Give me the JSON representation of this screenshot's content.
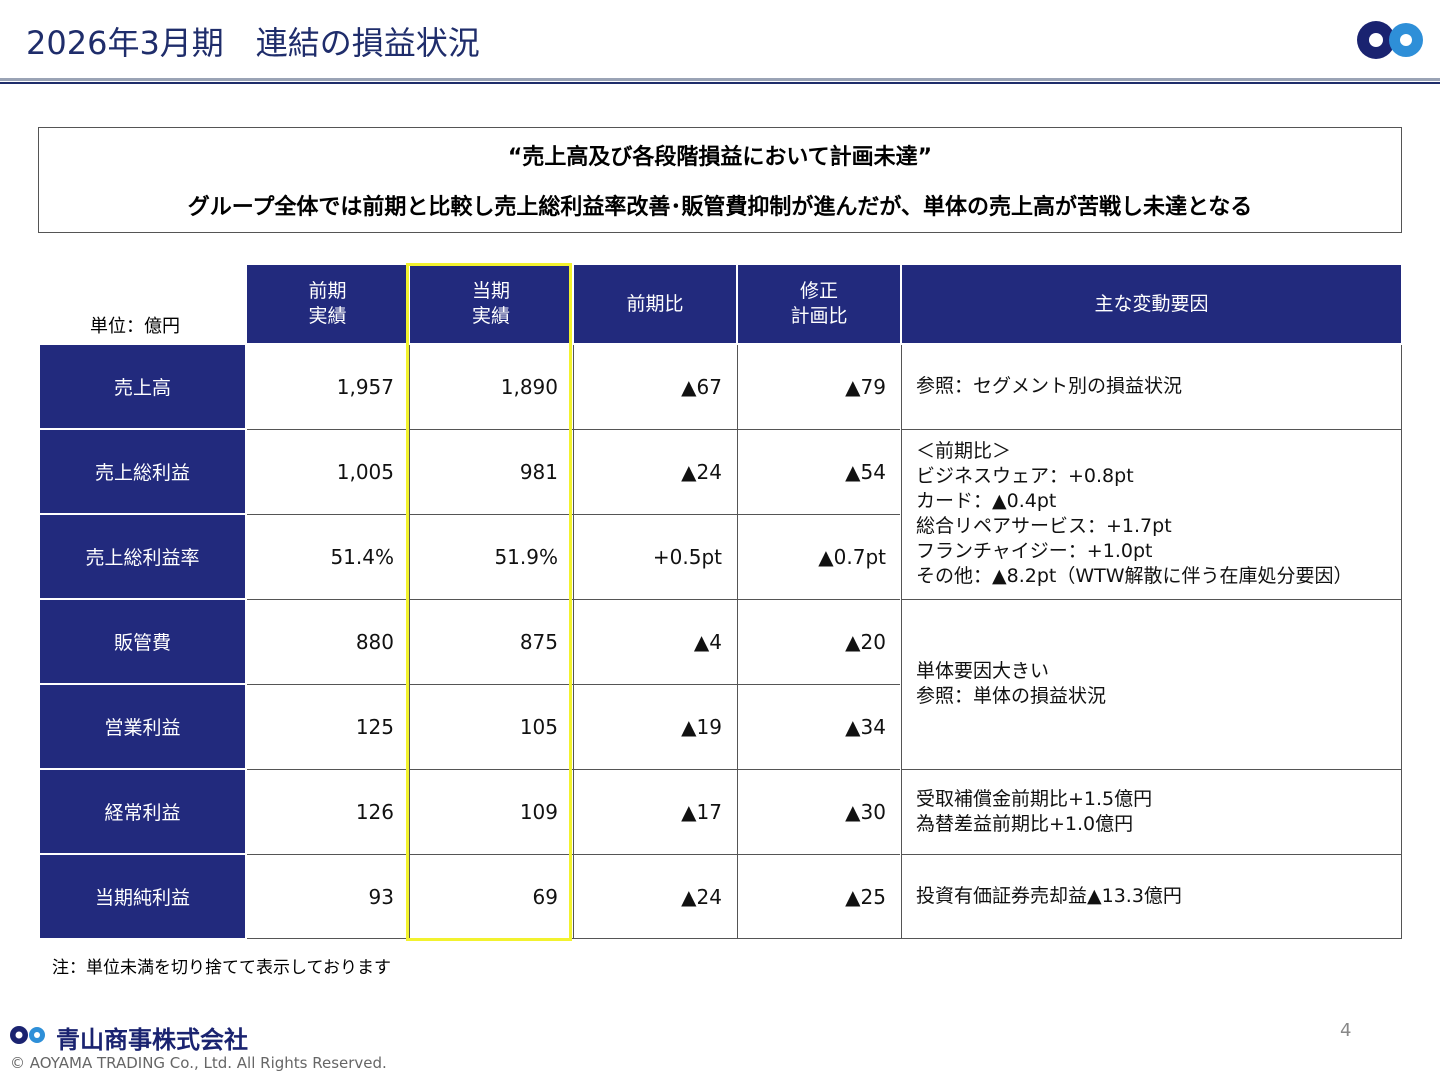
{
  "header": {
    "title": "2026年3月期　連結の損益状況"
  },
  "summary": {
    "lines": [
      "“売上高及び各段階損益において計画未達”",
      "グループ全体では前期と比較し売上総利益率改善･販管費抑制が進んだが、単体の売上高が苦戦し未達となる"
    ]
  },
  "table": {
    "unit": "単位：億円",
    "columns": [
      [
        "前期",
        "実績"
      ],
      [
        "当期",
        "実績"
      ],
      [
        "前期比"
      ],
      [
        "修正",
        "計画比"
      ],
      [
        "主な変動要因"
      ]
    ],
    "rows": [
      [
        "売上高",
        "1,957",
        "1,890",
        "▲67",
        "▲79"
      ],
      [
        "売上総利益",
        "1,005",
        "981",
        "▲24",
        "▲54"
      ],
      [
        "売上総利益率",
        "51.4%",
        "51.9%",
        "+0.5pt",
        "▲0.7pt"
      ],
      [
        "販管費",
        "880",
        "875",
        "▲4",
        "▲20"
      ],
      [
        "営業利益",
        "125",
        "105",
        "▲19",
        "▲34"
      ],
      [
        "経常利益",
        "126",
        "109",
        "▲17",
        "▲30"
      ],
      [
        "当期純利益",
        "93",
        "69",
        "▲24",
        "▲25"
      ]
    ],
    "notes": [
      [
        "参照：セグメント別の損益状況"
      ],
      [
        "＜前期比＞",
        "ビジネスウェア：+0.8pt",
        "カード：▲0.4pt",
        "総合リペアサービス：+1.7pt",
        "フランチャイジー：+1.0pt",
        "その他：▲8.2pt（WTW解散に伴う在庫処分要因）"
      ],
      [
        "単体要因大きい",
        "参照：単体の損益状況"
      ],
      [
        "受取補償金前期比+1.5億円",
        "為替差益前期比+1.0億円"
      ],
      [
        "投資有価証券売却益▲13.3億円"
      ]
    ]
  },
  "footnote": "注：単位未満を切り捨てて表示しております",
  "footer": {
    "company": "青山商事株式会社",
    "copyright": "© AOYAMA TRADING Co., Ltd. All Rights Reserved.",
    "page": "4"
  }
}
